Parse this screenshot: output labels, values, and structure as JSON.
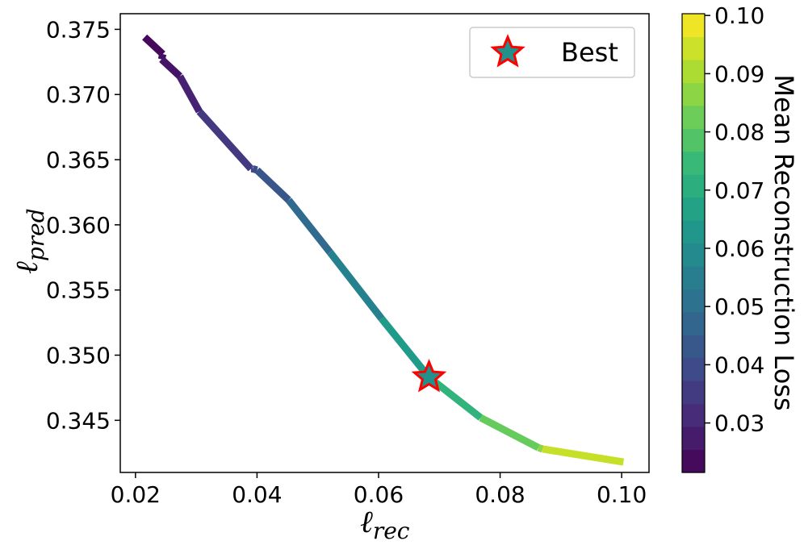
{
  "chart_data": {
    "type": "line",
    "x_label": {
      "base": "ℓ",
      "sub": "rec"
    },
    "y_label": {
      "base": "ℓ",
      "sub": "pred"
    },
    "xlim": [
      0.0175,
      0.1045
    ],
    "ylim": [
      0.341,
      0.3762
    ],
    "x_ticks": [
      "0.02",
      "0.04",
      "0.06",
      "0.08",
      "0.10"
    ],
    "y_ticks": [
      "0.345",
      "0.350",
      "0.355",
      "0.360",
      "0.365",
      "0.370",
      "0.375"
    ],
    "series": [
      {
        "x": [
          0.0215,
          0.0245,
          0.0243,
          0.0273,
          0.0305,
          0.039,
          0.0393,
          0.04,
          0.0452,
          0.052,
          0.0605,
          0.0683,
          0.0768,
          0.0863,
          0.087,
          0.1003
        ],
        "y": [
          0.3744,
          0.3731,
          0.3727,
          0.3714,
          0.3687,
          0.3643,
          0.3643,
          0.3642,
          0.3619,
          0.3579,
          0.3528,
          0.3483,
          0.3452,
          0.3429,
          0.3428,
          0.3418
        ],
        "color_by": "x"
      }
    ],
    "best_point": {
      "x": 0.0683,
      "y": 0.3483
    },
    "legend": {
      "entries": [
        "Best"
      ],
      "position": "upper right"
    },
    "colorbar": {
      "label": "Mean Reconstruction Loss",
      "range": [
        0.0215,
        0.1003
      ],
      "ticks": [
        "0.03",
        "0.04",
        "0.05",
        "0.06",
        "0.07",
        "0.08",
        "0.09",
        "0.10"
      ],
      "colormap": "viridis"
    },
    "colors": {
      "star_fill": "#21918c",
      "star_edge": "#ff0000",
      "axis": "#000000"
    }
  }
}
